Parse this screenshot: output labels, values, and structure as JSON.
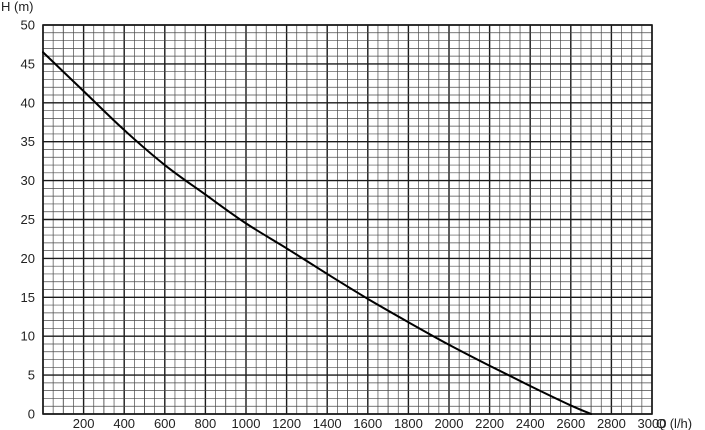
{
  "chart_data": {
    "type": "line",
    "title": "",
    "xlabel": "Q (l/h)",
    "ylabel": "H (m)",
    "xlim": [
      0,
      3000
    ],
    "ylim": [
      0,
      50
    ],
    "x_ticks": [
      "200",
      "400",
      "600",
      "800",
      "1000",
      "1200",
      "1400",
      "1600",
      "1800",
      "2000",
      "2200",
      "2400",
      "2600",
      "2800",
      "3000"
    ],
    "y_ticks": [
      "0",
      "5",
      "10",
      "15",
      "20",
      "25",
      "30",
      "35",
      "40",
      "45",
      "50"
    ],
    "grid": true,
    "legend": "none",
    "series": [
      {
        "x": [
          0,
          200,
          400,
          600,
          800,
          1000,
          1200,
          1400,
          1600,
          1800,
          2000,
          2200,
          2400,
          2600,
          2700
        ],
        "y": [
          46.5,
          41.5,
          36.5,
          32.0,
          28.2,
          24.5,
          21.3,
          18.0,
          14.8,
          11.8,
          8.9,
          6.2,
          3.6,
          1.1,
          0
        ]
      }
    ],
    "colors": {
      "line": "#000000",
      "grid_major": "#1a1a1a",
      "grid_minor": "#4a4a4a"
    }
  }
}
